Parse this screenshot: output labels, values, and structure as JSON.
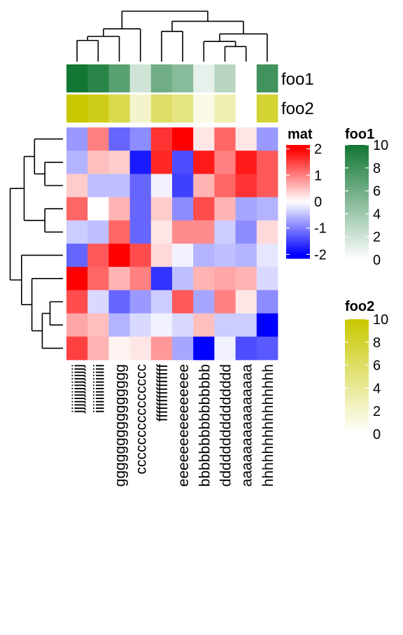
{
  "chart_data": {
    "type": "heatmap",
    "columns": [
      "jjjjjjjjjjjjjjj",
      "iiiiiiiiiiiiiii",
      "ggggggggggggggg",
      "ccccccccccccccc",
      "fffffffffffffff",
      "eeeeeeeeeeeeeee",
      "bbbbbbbbbbbbbbb",
      "ddddddddddddddd",
      "aaaaaaaaaaaaaaa",
      "hhhhhhhhhhhhhhh"
    ],
    "rows": 10,
    "matrix": [
      [
        -0.8,
        1.0,
        -1.2,
        -0.9,
        1.6,
        2.2,
        0.2,
        1.2,
        0.2,
        -0.8
      ],
      [
        -0.6,
        0.5,
        0.4,
        -1.8,
        1.7,
        -1.4,
        1.8,
        1.0,
        1.8,
        1.3
      ],
      [
        0.4,
        -0.5,
        -0.5,
        -1.2,
        -0.1,
        -1.5,
        0.6,
        1.2,
        1.6,
        1.3
      ],
      [
        1.2,
        0.0,
        0.6,
        -1.2,
        0.4,
        -0.9,
        1.4,
        0.6,
        -0.7,
        -0.6
      ],
      [
        -0.4,
        -0.5,
        1.2,
        -1.2,
        0.2,
        0.9,
        0.9,
        -0.4,
        -0.9,
        0.3
      ],
      [
        -1.2,
        1.3,
        2.1,
        1.4,
        0.3,
        -0.1,
        -0.6,
        -0.5,
        -0.6,
        -0.2
      ],
      [
        2.2,
        1.2,
        0.6,
        1.0,
        -1.6,
        -0.5,
        0.6,
        0.7,
        0.6,
        -0.3
      ],
      [
        1.4,
        -0.3,
        -1.2,
        -0.8,
        -0.4,
        1.3,
        -0.7,
        1.0,
        0.2,
        -0.9
      ],
      [
        0.7,
        0.5,
        -0.6,
        -0.3,
        -0.1,
        -0.3,
        0.5,
        -0.4,
        -0.4,
        -2.2
      ],
      [
        1.5,
        0.6,
        0.1,
        0.2,
        0.8,
        -0.7,
        -2.0,
        -0.1,
        -1.4,
        -1.3
      ]
    ],
    "annotations": [
      {
        "name": "foo1",
        "values": [
          10,
          9,
          7,
          2,
          6,
          5,
          1,
          3,
          0,
          8
        ],
        "colors": [
          "#ffffff",
          "#117733"
        ],
        "ticks": [
          10,
          8,
          6,
          4,
          2,
          0
        ]
      },
      {
        "name": "foo2",
        "values": [
          10,
          9,
          7,
          2,
          6,
          5,
          1,
          3,
          0,
          8
        ],
        "colors": [
          "#ffffff",
          "#c8c800"
        ],
        "ticks": [
          10,
          8,
          6,
          4,
          2,
          0
        ]
      }
    ],
    "legend": {
      "title": "mat",
      "ticks": [
        2,
        1,
        0,
        -1,
        -2
      ],
      "colors": {
        "low": "#0000ff",
        "mid": "#ffffff",
        "high": "#ff0000"
      }
    }
  }
}
